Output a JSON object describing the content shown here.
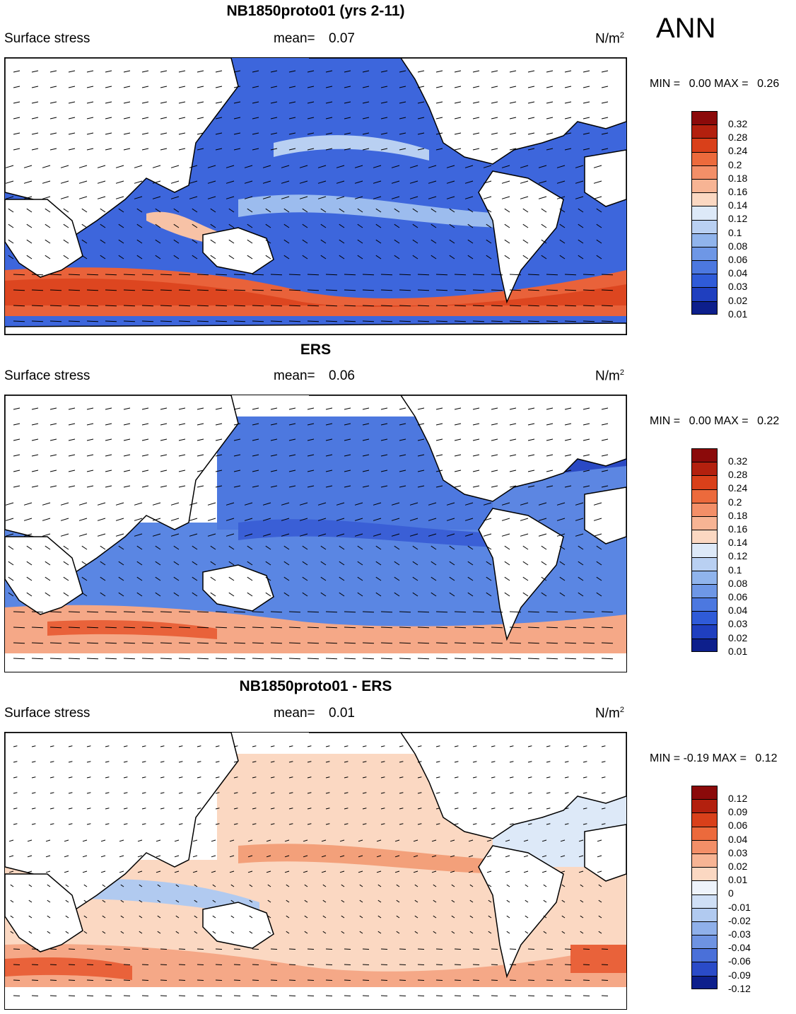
{
  "season": "ANN",
  "panels": [
    {
      "title": "NB1850proto01 (yrs 2-11)",
      "left_label": "Surface stress",
      "mean_label": "mean=",
      "mean_value": "0.07",
      "units": "N/m",
      "units_exp": "2",
      "min_label": "MIN =",
      "min_value": "0.00",
      "max_label": "MAX =",
      "max_value": "0.26",
      "colorbar": [
        "0.32",
        "0.28",
        "0.24",
        "0.2",
        "0.18",
        "0.16",
        "0.14",
        "0.12",
        "0.1",
        "0.08",
        "0.06",
        "0.04",
        "0.03",
        "0.02",
        "0.01"
      ],
      "colors": [
        "#8b0a0a",
        "#b3200e",
        "#d9401a",
        "#ec6a3c",
        "#f38f68",
        "#f7b494",
        "#fbd8c2",
        "#dde9f8",
        "#b9d0f2",
        "#90b4ec",
        "#6e97e6",
        "#4c78e0",
        "#2f5bd8",
        "#1f3fbf",
        "#0d1f8c"
      ]
    },
    {
      "title": "ERS",
      "left_label": "Surface stress",
      "mean_label": "mean=",
      "mean_value": "0.06",
      "units": "N/m",
      "units_exp": "2",
      "min_label": "MIN =",
      "min_value": "0.00",
      "max_label": "MAX =",
      "max_value": "0.22",
      "colorbar": [
        "0.32",
        "0.28",
        "0.24",
        "0.2",
        "0.18",
        "0.16",
        "0.14",
        "0.12",
        "0.1",
        "0.08",
        "0.06",
        "0.04",
        "0.03",
        "0.02",
        "0.01"
      ],
      "colors": [
        "#8b0a0a",
        "#b3200e",
        "#d9401a",
        "#ec6a3c",
        "#f38f68",
        "#f7b494",
        "#fbd8c2",
        "#dde9f8",
        "#b9d0f2",
        "#90b4ec",
        "#6e97e6",
        "#4c78e0",
        "#2f5bd8",
        "#1f3fbf",
        "#0d1f8c"
      ]
    },
    {
      "title": "NB1850proto01 - ERS",
      "left_label": "Surface stress",
      "mean_label": "mean=",
      "mean_value": "0.01",
      "units": "N/m",
      "units_exp": "2",
      "min_label": "MIN =",
      "min_value": "-0.19",
      "max_label": "MAX =",
      "max_value": "0.12",
      "colorbar": [
        "0.12",
        "0.09",
        "0.06",
        "0.04",
        "0.03",
        "0.02",
        "0.01",
        "0",
        "-0.01",
        "-0.02",
        "-0.03",
        "-0.04",
        "-0.06",
        "-0.09",
        "-0.12"
      ],
      "colors": [
        "#8b0a0a",
        "#b3200e",
        "#d9401a",
        "#ec6a3c",
        "#f38f68",
        "#f7b494",
        "#fbd8c2",
        "#eef3fb",
        "#cfdff6",
        "#b1caf0",
        "#8fb0ea",
        "#6e93e2",
        "#4a70d9",
        "#2a4bc8",
        "#0d1f8c"
      ]
    }
  ]
}
